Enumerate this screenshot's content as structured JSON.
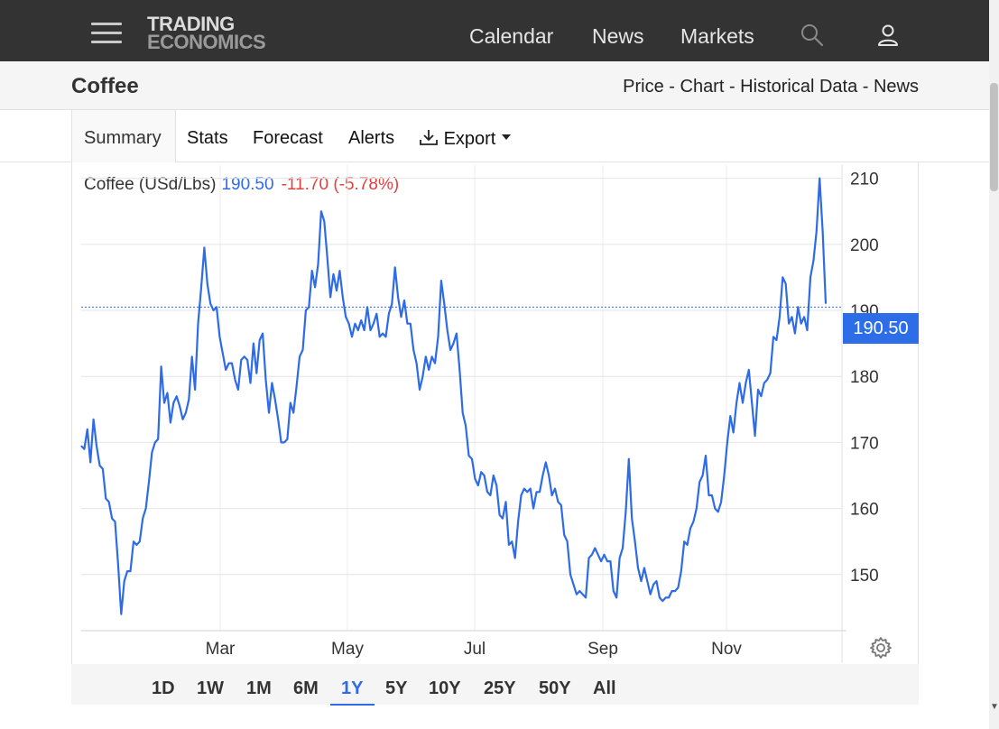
{
  "nav": {
    "logo_line1": "TRADING",
    "logo_line2": "ECONOMICS",
    "links": [
      "Calendar",
      "News",
      "Markets"
    ],
    "icons": [
      "menu-icon",
      "search-icon",
      "user-icon"
    ]
  },
  "page": {
    "title": "Coffee",
    "sub_links": "Price - Chart - Historical Data - News"
  },
  "tabs": [
    "Summary",
    "Stats",
    "Forecast",
    "Alerts",
    "Export"
  ],
  "legend": {
    "name": "Coffee (USd/Lbs)",
    "value": "190.50",
    "change": "-11.70 (-5.78%)"
  },
  "price_tag": "190.50",
  "ranges": [
    "1D",
    "1W",
    "1M",
    "6M",
    "1Y",
    "5Y",
    "10Y",
    "25Y",
    "50Y",
    "All"
  ],
  "active_range": "1Y",
  "colors": {
    "line": "#2e6be6",
    "negative": "#e04040",
    "topbar": "#333333",
    "price_tag": "#2d6ee8"
  },
  "chart_data": {
    "type": "line",
    "title": "",
    "xlabel": "",
    "ylabel": "",
    "ylim": [
      141.5,
      212
    ],
    "y_ticks": [
      150,
      160,
      170,
      180,
      190,
      200,
      210
    ],
    "y_tick_labels": [
      "150",
      "160",
      "170",
      "180",
      "190",
      "200",
      "210"
    ],
    "x_ticks": [
      "Mar",
      "May",
      "Jul",
      "Sep",
      "Nov"
    ],
    "last_value": 190.5,
    "series": [
      {
        "values": [
          169.5,
          169,
          172,
          167,
          173.5,
          169.5,
          166.5,
          166,
          161.5,
          161,
          158.5,
          158,
          151.5,
          144,
          149,
          150.5,
          150.5,
          155,
          154.5,
          155,
          158.5,
          160,
          164,
          168.5,
          170,
          170.5,
          181.5,
          176,
          177.5,
          173,
          176,
          177,
          175.5,
          173.5,
          174.5,
          176.5,
          183,
          178,
          188,
          193.5,
          199.5,
          194,
          191,
          190,
          190.5,
          186,
          183.5,
          181,
          182,
          182,
          179.5,
          178,
          182.5,
          183,
          182.5,
          179,
          185,
          180.5,
          185.5,
          186.5,
          179.5,
          174.5,
          179,
          176.5,
          173.5,
          170,
          170,
          170.5,
          176,
          174.5,
          178.5,
          183,
          184,
          190,
          190.5,
          196,
          193.5,
          197,
          205,
          203.5,
          198,
          192,
          195.5,
          193,
          196,
          192,
          189,
          188,
          186,
          188,
          187,
          188.5,
          187,
          190.5,
          187,
          188,
          189.5,
          186,
          186.5,
          186,
          189.5,
          191,
          196.5,
          192,
          189,
          191.5,
          188,
          188,
          184,
          182,
          178,
          180,
          183,
          181,
          183,
          182,
          186,
          194.5,
          191,
          187,
          184,
          185,
          186.5,
          181,
          174.5,
          172.5,
          168,
          167.5,
          164.5,
          163.5,
          165.5,
          165,
          162.5,
          162,
          165,
          163.5,
          159,
          158.5,
          161,
          154.5,
          155,
          152.5,
          158,
          162,
          163,
          162.5,
          163,
          160,
          162.5,
          162.5,
          165,
          167,
          165,
          162,
          163,
          161,
          160.5,
          156,
          155,
          150,
          148.5,
          147,
          147.5,
          147,
          146.5,
          152.5,
          153,
          154,
          153,
          152,
          153,
          152,
          152,
          147.5,
          146.5,
          152.5,
          154,
          159.5,
          167.5,
          158.5,
          155,
          151,
          149,
          151,
          149,
          147,
          148.5,
          149,
          146.5,
          146,
          146.5,
          146.5,
          147.5,
          147.5,
          148,
          150.5,
          155,
          154.5,
          157,
          158,
          160,
          164,
          165,
          168,
          162,
          162,
          160,
          159.5,
          161,
          165,
          170,
          174,
          171.5,
          176,
          179,
          176,
          179,
          181,
          176,
          171,
          178,
          177,
          179,
          179.5,
          180.5,
          186,
          185.5,
          189,
          195,
          194,
          188,
          189,
          186.5,
          190.5,
          188,
          189,
          187,
          195,
          197.5,
          202,
          210,
          202,
          191
        ]
      }
    ]
  }
}
